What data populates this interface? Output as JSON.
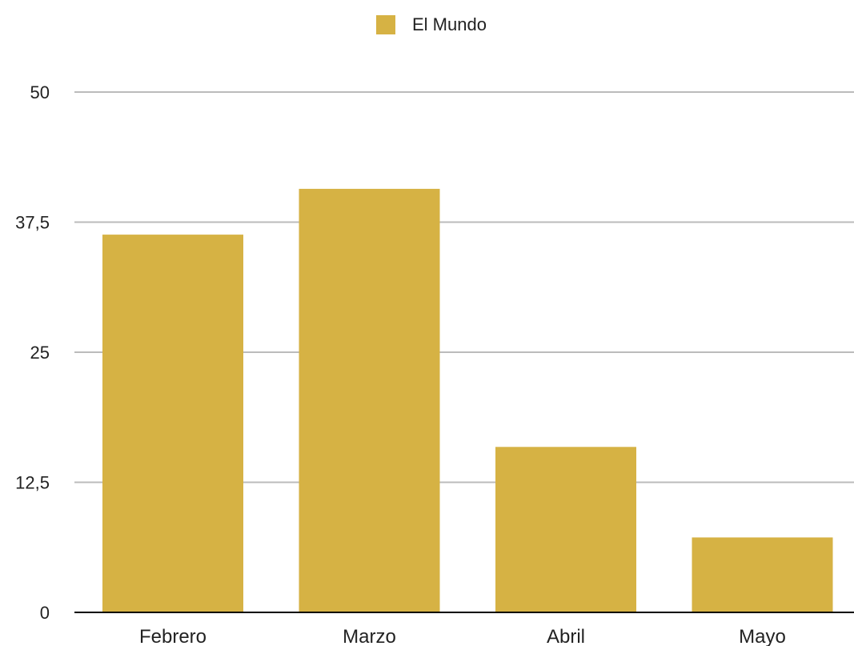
{
  "chart_data": {
    "type": "bar",
    "categories": [
      "Febrero",
      "Marzo",
      "Abril",
      "Mayo"
    ],
    "series": [
      {
        "name": "El Mundo",
        "values": [
          36.3,
          40.7,
          15.9,
          7.2
        ],
        "color": "#D6B244"
      }
    ],
    "ylim": [
      0,
      50
    ],
    "yticks": [
      0,
      12.5,
      25,
      37.5,
      50
    ],
    "ytick_labels": [
      "0",
      "12,5",
      "25",
      "37,5",
      "50"
    ],
    "grid": true,
    "legend_position": "top-center",
    "axis_color": "#000000",
    "grid_color": "#BBBBBB",
    "title": "",
    "xlabel": "",
    "ylabel": ""
  }
}
